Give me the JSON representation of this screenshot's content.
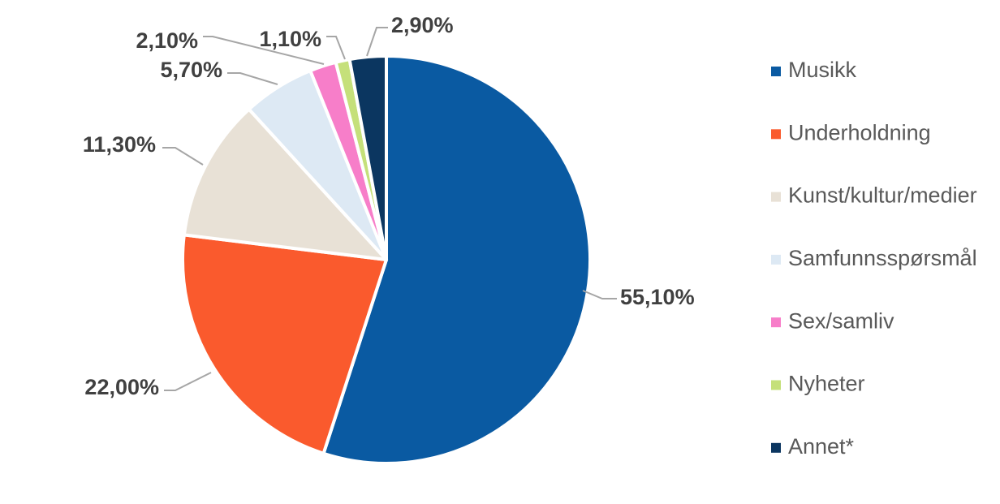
{
  "chart_data": {
    "type": "pie",
    "slices": [
      {
        "name": "Musikk",
        "value": 55.1,
        "label": "55,10%",
        "color": "#0a5aa2"
      },
      {
        "name": "Underholdning",
        "value": 22.0,
        "label": "22,00%",
        "color": "#fa5a2d"
      },
      {
        "name": "Kunst/kultur/medier",
        "value": 11.3,
        "label": "11,30%",
        "color": "#e8e1d6"
      },
      {
        "name": "Samfunnsspørsmål",
        "value": 5.7,
        "label": "5,70%",
        "color": "#dde9f4"
      },
      {
        "name": "Sex/samliv",
        "value": 2.1,
        "label": "2,10%",
        "color": "#f77ec9"
      },
      {
        "name": "Nyheter",
        "value": 1.1,
        "label": "1,10%",
        "color": "#c5e07a"
      },
      {
        "name": "Annet*",
        "value": 2.9,
        "label": "2,90%",
        "color": "#0b3660"
      }
    ],
    "start": "12 o'clock",
    "direction": "clockwise",
    "legend_position": "right"
  }
}
